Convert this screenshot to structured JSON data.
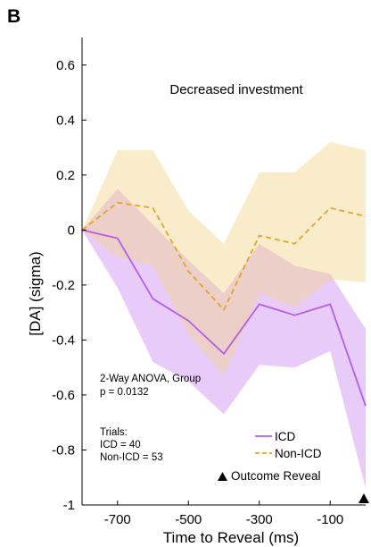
{
  "panel_letter": "B",
  "chart_data": {
    "type": "line",
    "title": "Decreased investment",
    "xlabel": "Time to Reveal (ms)",
    "ylabel": "[DA] (sigma)",
    "xlim": [
      -800,
      0
    ],
    "ylim": [
      -1,
      0.7
    ],
    "xticks": [
      -700,
      -500,
      -300,
      -100
    ],
    "xtick_labels": [
      "-700",
      "-500",
      "-300",
      "-100"
    ],
    "yticks": [
      -1,
      -0.8,
      -0.6,
      -0.4,
      -0.2,
      0,
      0.2,
      0.4,
      0.6
    ],
    "ytick_labels": [
      "-1",
      "-0.8",
      "-0.6",
      "-0.4",
      "-0.2",
      "0",
      "0.2",
      "0.4",
      "0.6"
    ],
    "grid": false,
    "x": [
      -800,
      -700,
      -600,
      -500,
      -400,
      -300,
      -200,
      -100,
      0
    ],
    "series": [
      {
        "name": "ICD",
        "line_style": "solid",
        "color": "#b35ee6",
        "band_color": "#cc8cf2",
        "values": [
          0.0,
          -0.03,
          -0.25,
          -0.33,
          -0.45,
          -0.27,
          -0.31,
          -0.27,
          -0.64
        ],
        "upper": [
          0.0,
          0.15,
          0.02,
          -0.11,
          -0.23,
          -0.05,
          -0.13,
          -0.16,
          -0.36
        ],
        "lower": [
          0.0,
          -0.21,
          -0.48,
          -0.55,
          -0.67,
          -0.49,
          -0.5,
          -0.44,
          -0.94
        ]
      },
      {
        "name": "Non-ICD",
        "line_style": "dashed",
        "color": "#e3a42c",
        "band_color": "#f2d58c",
        "values": [
          0.0,
          0.1,
          0.08,
          -0.15,
          -0.29,
          -0.02,
          -0.05,
          0.08,
          0.05
        ],
        "upper": [
          0.0,
          0.29,
          0.29,
          0.07,
          -0.05,
          0.21,
          0.21,
          0.32,
          0.29
        ],
        "lower": [
          0.0,
          -0.1,
          -0.13,
          -0.38,
          -0.53,
          -0.23,
          -0.28,
          -0.18,
          -0.19
        ]
      }
    ],
    "annotations": {
      "stats_line1": "2-Way ANOVA, Group",
      "stats_line2": "p = 0.0132",
      "trials_header": "Trials:",
      "trials_icd": "ICD = 40",
      "trials_nonicd": "Non-ICD = 53",
      "outcome_marker_label": "Outcome Reveal",
      "outcome_marker_x": 0
    },
    "legend_placement": "bottom-right"
  }
}
